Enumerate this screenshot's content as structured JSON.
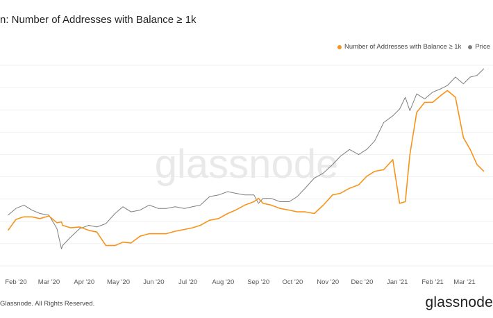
{
  "title": "n: Number of Addresses with Balance ≥ 1k",
  "legend": [
    {
      "label": "Number of Addresses with Balance ≥ 1k",
      "color": "#f7931a"
    },
    {
      "label": "Price",
      "color": "#7d7d7d"
    }
  ],
  "watermark": "glassnode",
  "footer": "Glassnode. All Rights Reserved.",
  "brand": "glassnode",
  "chart_data": {
    "type": "line",
    "grid": true,
    "legend_position": "top-right",
    "x_tick_labels": [
      "Feb '20",
      "Mar '20",
      "Apr '20",
      "May '20",
      "Jun '20",
      "Jul '20",
      "Aug '20",
      "Sep '20",
      "Oct '20",
      "Nov '20",
      "Dec '20",
      "Jan '21",
      "Feb '21",
      "Mar '21"
    ],
    "x": [
      "2020-01-25",
      "2020-02-01",
      "2020-02-08",
      "2020-02-15",
      "2020-02-22",
      "2020-03-01",
      "2020-03-08",
      "2020-03-12",
      "2020-03-13",
      "2020-03-20",
      "2020-03-28",
      "2020-04-05",
      "2020-04-12",
      "2020-04-20",
      "2020-04-28",
      "2020-05-05",
      "2020-05-12",
      "2020-05-20",
      "2020-05-28",
      "2020-06-05",
      "2020-06-12",
      "2020-06-20",
      "2020-06-28",
      "2020-07-05",
      "2020-07-12",
      "2020-07-20",
      "2020-07-28",
      "2020-08-05",
      "2020-08-12",
      "2020-08-20",
      "2020-08-28",
      "2020-09-01",
      "2020-09-05",
      "2020-09-12",
      "2020-09-20",
      "2020-09-28",
      "2020-10-05",
      "2020-10-12",
      "2020-10-20",
      "2020-10-28",
      "2020-11-05",
      "2020-11-12",
      "2020-11-20",
      "2020-11-28",
      "2020-12-05",
      "2020-12-12",
      "2020-12-20",
      "2020-12-28",
      "2021-01-03",
      "2021-01-08",
      "2021-01-12",
      "2021-01-18",
      "2021-01-25",
      "2021-02-01",
      "2021-02-08",
      "2021-02-14",
      "2021-02-21",
      "2021-02-28",
      "2021-03-06",
      "2021-03-12",
      "2021-03-18"
    ],
    "series": [
      {
        "name": "Number of Addresses with Balance ≥ 1k",
        "color": "#f7931a",
        "values": [
          0.17,
          0.235,
          0.25,
          0.25,
          0.24,
          0.255,
          0.215,
          0.22,
          0.2,
          0.185,
          0.19,
          0.17,
          0.16,
          0.08,
          0.08,
          0.1,
          0.095,
          0.135,
          0.15,
          0.15,
          0.15,
          0.165,
          0.175,
          0.185,
          0.2,
          0.23,
          0.24,
          0.27,
          0.29,
          0.32,
          0.34,
          0.36,
          0.33,
          0.32,
          0.3,
          0.29,
          0.28,
          0.28,
          0.27,
          0.32,
          0.38,
          0.39,
          0.42,
          0.44,
          0.49,
          0.52,
          0.53,
          0.59,
          0.33,
          0.34,
          0.62,
          0.87,
          0.93,
          0.93,
          0.97,
          1.0,
          0.96,
          0.72,
          0.65,
          0.56,
          0.52
        ]
      },
      {
        "name": "Price",
        "color": "#7d7d7d",
        "values": [
          0.26,
          0.3,
          0.32,
          0.29,
          0.27,
          0.26,
          0.18,
          0.06,
          0.08,
          0.13,
          0.18,
          0.2,
          0.19,
          0.21,
          0.27,
          0.31,
          0.28,
          0.29,
          0.32,
          0.3,
          0.3,
          0.31,
          0.3,
          0.31,
          0.32,
          0.37,
          0.38,
          0.4,
          0.39,
          0.38,
          0.38,
          0.33,
          0.36,
          0.36,
          0.34,
          0.34,
          0.37,
          0.42,
          0.48,
          0.51,
          0.56,
          0.61,
          0.65,
          0.62,
          0.65,
          0.7,
          0.81,
          0.85,
          0.89,
          0.96,
          0.88,
          0.98,
          0.95,
          0.99,
          1.01,
          1.03,
          1.08,
          1.04,
          1.08,
          1.09,
          1.13
        ]
      }
    ]
  }
}
